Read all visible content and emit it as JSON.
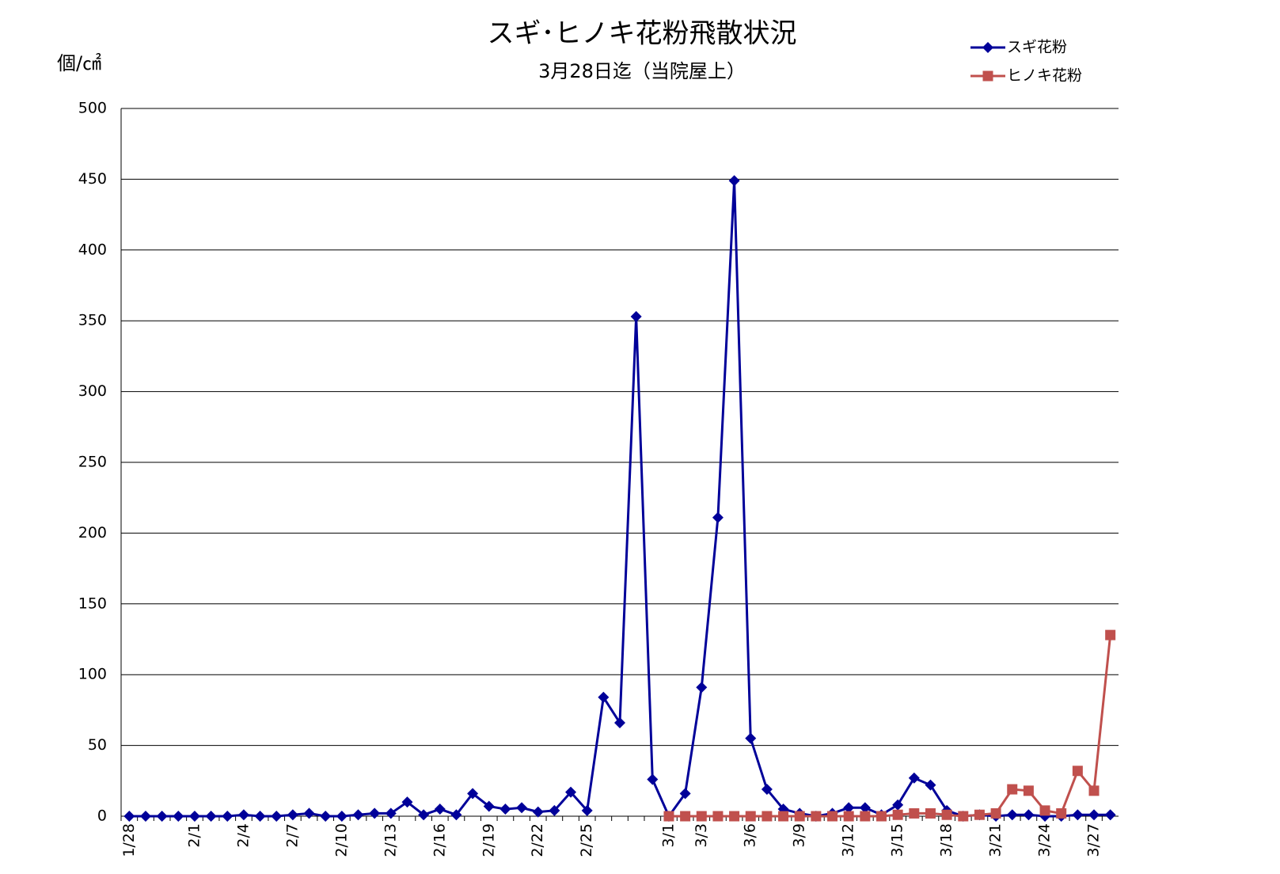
{
  "chart_data": {
    "type": "line",
    "title": "スギ･ヒノキ花粉飛散状況",
    "subtitle": "3月28日迄（当院屋上）",
    "y_label": "個/㎠",
    "categories": [
      "1/28",
      null,
      null,
      null,
      "2/1",
      null,
      null,
      "2/4",
      null,
      null,
      "2/7",
      null,
      null,
      "2/10",
      null,
      null,
      "2/13",
      null,
      null,
      "2/16",
      null,
      null,
      "2/19",
      null,
      null,
      "2/22",
      null,
      null,
      "2/25",
      null,
      null,
      null,
      null,
      "3/1",
      null,
      "3/3",
      null,
      null,
      "3/6",
      null,
      null,
      "3/9",
      null,
      null,
      "3/12",
      null,
      null,
      "3/15",
      null,
      null,
      "3/18",
      null,
      null,
      "3/21",
      null,
      null,
      "3/24",
      null,
      null,
      "3/27",
      null
    ],
    "series": [
      {
        "name": "スギ花粉",
        "color": "#000099",
        "marker": "diamond",
        "values": [
          0,
          0,
          0,
          0,
          0,
          0,
          0,
          1,
          0,
          0,
          1,
          2,
          0,
          0,
          1,
          2,
          2,
          10,
          1,
          5,
          1,
          16,
          7,
          5,
          6,
          3,
          4,
          17,
          4,
          84,
          66,
          353,
          26,
          0,
          16,
          91,
          211,
          449,
          55,
          19,
          5,
          2,
          0,
          2,
          6,
          6,
          1,
          8,
          27,
          22,
          4,
          0,
          1,
          0,
          1,
          1,
          0,
          0,
          1,
          1,
          1
        ]
      },
      {
        "name": "ヒノキ花粉",
        "color": "#c0504d",
        "marker": "square",
        "values": [
          null,
          null,
          null,
          null,
          null,
          null,
          null,
          null,
          null,
          null,
          null,
          null,
          null,
          null,
          null,
          null,
          null,
          null,
          null,
          null,
          null,
          null,
          null,
          null,
          null,
          null,
          null,
          null,
          null,
          null,
          null,
          null,
          null,
          0,
          0,
          0,
          0,
          0,
          0,
          0,
          0,
          0,
          0,
          0,
          0,
          0,
          0,
          1,
          2,
          2,
          1,
          0,
          1,
          2,
          19,
          18,
          4,
          2,
          32,
          18,
          128
        ]
      }
    ],
    "ylim": [
      0,
      500
    ],
    "yticks": [
      0,
      50,
      100,
      150,
      200,
      250,
      300,
      350,
      400,
      450,
      500
    ],
    "grid": true,
    "legend": "top-right"
  }
}
